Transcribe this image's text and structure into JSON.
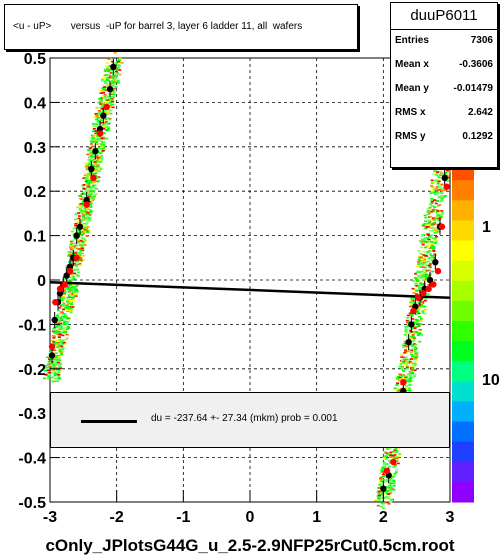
{
  "chart_data": {
    "type": "scatter",
    "title": "<u - uP>       versus  -uP for barrel 3, layer 6 ladder 11, all  wafers",
    "xlim": [
      -3,
      3
    ],
    "ylim": [
      -0.5,
      0.5
    ],
    "x_ticks": [
      "-3",
      "-2",
      "-1",
      "0",
      "1",
      "2",
      "3"
    ],
    "y_ticks": [
      "-0.5",
      "-0.4",
      "-0.3",
      "-0.2",
      "-0.1",
      "0",
      "0.1",
      "0.2",
      "0.3",
      "0.4",
      "0.5"
    ],
    "z_ticks": [
      "10",
      "1",
      "10"
    ],
    "grid": true,
    "fit_line": {
      "x": [
        -3,
        3
      ],
      "y": [
        -0.005,
        -0.04
      ]
    },
    "profile_black": [
      {
        "x": -2.05,
        "y": 0.48
      },
      {
        "x": -2.1,
        "y": 0.43
      },
      {
        "x": -2.2,
        "y": 0.37
      },
      {
        "x": -2.25,
        "y": 0.34
      },
      {
        "x": -2.32,
        "y": 0.29
      },
      {
        "x": -2.38,
        "y": 0.25
      },
      {
        "x": -2.45,
        "y": 0.18
      },
      {
        "x": -2.55,
        "y": 0.12
      },
      {
        "x": -2.6,
        "y": 0.1
      },
      {
        "x": -2.65,
        "y": 0.05
      },
      {
        "x": -2.7,
        "y": 0.03
      },
      {
        "x": -2.75,
        "y": 0.01
      },
      {
        "x": -2.8,
        "y": -0.01
      },
      {
        "x": -2.85,
        "y": -0.03
      },
      {
        "x": -2.88,
        "y": -0.05
      },
      {
        "x": -2.93,
        "y": -0.09
      },
      {
        "x": -2.97,
        "y": -0.17
      },
      {
        "x": 2.0,
        "y": -0.47
      },
      {
        "x": 2.08,
        "y": -0.44
      },
      {
        "x": 2.2,
        "y": -0.36
      },
      {
        "x": 2.3,
        "y": -0.25
      },
      {
        "x": 2.38,
        "y": -0.14
      },
      {
        "x": 2.42,
        "y": -0.1
      },
      {
        "x": 2.48,
        "y": -0.06
      },
      {
        "x": 2.55,
        "y": -0.04
      },
      {
        "x": 2.62,
        "y": -0.02
      },
      {
        "x": 2.7,
        "y": 0.0
      },
      {
        "x": 2.78,
        "y": 0.04
      },
      {
        "x": 2.85,
        "y": 0.12
      },
      {
        "x": 2.92,
        "y": 0.23
      }
    ],
    "profile_red": [
      {
        "x": -2.15,
        "y": 0.39
      },
      {
        "x": -2.25,
        "y": 0.33
      },
      {
        "x": -2.35,
        "y": 0.23
      },
      {
        "x": -2.45,
        "y": 0.17
      },
      {
        "x": -2.6,
        "y": 0.05
      },
      {
        "x": -2.7,
        "y": 0.02
      },
      {
        "x": -2.78,
        "y": -0.01
      },
      {
        "x": -2.85,
        "y": -0.02
      },
      {
        "x": -2.92,
        "y": -0.05
      },
      {
        "x": -2.97,
        "y": -0.15
      },
      {
        "x": 2.05,
        "y": -0.43
      },
      {
        "x": 2.15,
        "y": -0.41
      },
      {
        "x": 2.3,
        "y": -0.23
      },
      {
        "x": 2.45,
        "y": -0.07
      },
      {
        "x": 2.52,
        "y": -0.04
      },
      {
        "x": 2.6,
        "y": -0.03
      },
      {
        "x": 2.68,
        "y": -0.02
      },
      {
        "x": 2.75,
        "y": -0.01
      },
      {
        "x": 2.82,
        "y": 0.02
      },
      {
        "x": 2.88,
        "y": 0.12
      },
      {
        "x": 2.95,
        "y": 0.21
      }
    ]
  },
  "stats": {
    "name": "duuP6011",
    "rows": [
      {
        "key": "Entries",
        "value": "7306"
      },
      {
        "key": "Mean x",
        "value": "-0.3606"
      },
      {
        "key": "Mean y",
        "value": "-0.01479"
      },
      {
        "key": "RMS x",
        "value": "2.642"
      },
      {
        "key": "RMS y",
        "value": "0.1292"
      }
    ]
  },
  "legend": {
    "text": "du = -237.64 +- 27.34 (mkm) prob = 0.001"
  },
  "footer": "cOnly_JPlotsG44G_u_2.5-2.9NFP25rCut0.5cm.root",
  "colors": {
    "fit": "#000000",
    "profile_red": "#ff0000",
    "profile_black": "#000000",
    "palette": [
      "#ffff00",
      "#ffd000",
      "#ff9000",
      "#ff5000",
      "#ff0000",
      "#00ff00",
      "#40ff40",
      "#80ff80",
      "#00c8ff",
      "#0080ff",
      "#8000ff"
    ]
  }
}
